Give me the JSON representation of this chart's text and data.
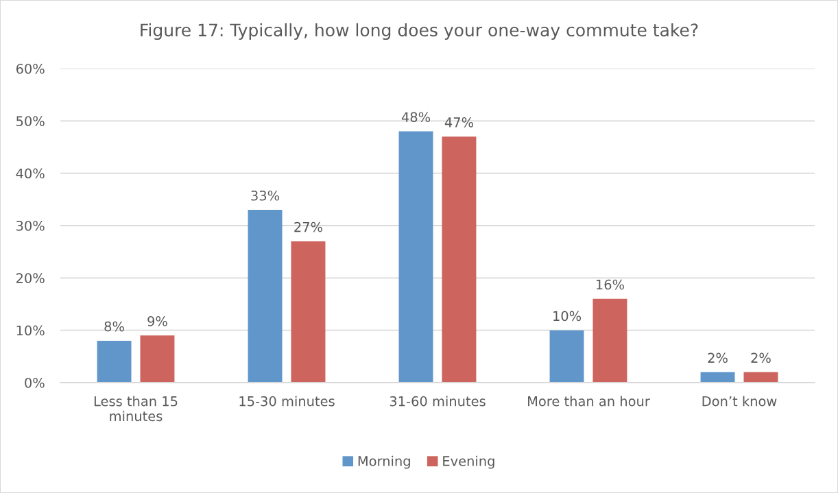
{
  "chart_data": {
    "type": "bar",
    "title": "Figure 17: Typically, how long does your one-way commute take?",
    "categories": [
      "Less than 15 minutes",
      "15-30 minutes",
      "31-60 minutes",
      "More than an hour",
      "Don’t know"
    ],
    "series": [
      {
        "name": "Morning",
        "color": "#6096c9",
        "values": [
          8,
          33,
          48,
          10,
          2
        ],
        "value_labels": [
          "8%",
          "33%",
          "48%",
          "10%",
          "2%"
        ]
      },
      {
        "name": "Evening",
        "color": "#cd645e",
        "values": [
          9,
          27,
          47,
          16,
          2
        ],
        "value_labels": [
          "9%",
          "27%",
          "47%",
          "16%",
          "2%"
        ]
      }
    ],
    "ylim": [
      0,
      60
    ],
    "yticks": [
      {
        "value": 0,
        "label": "0%"
      },
      {
        "value": 10,
        "label": "10%"
      },
      {
        "value": 20,
        "label": "20%"
      },
      {
        "value": 30,
        "label": "30%"
      },
      {
        "value": 40,
        "label": "40%"
      },
      {
        "value": 50,
        "label": "50%"
      },
      {
        "value": 60,
        "label": "60%"
      }
    ],
    "grid": "y",
    "legend": "bottom"
  }
}
